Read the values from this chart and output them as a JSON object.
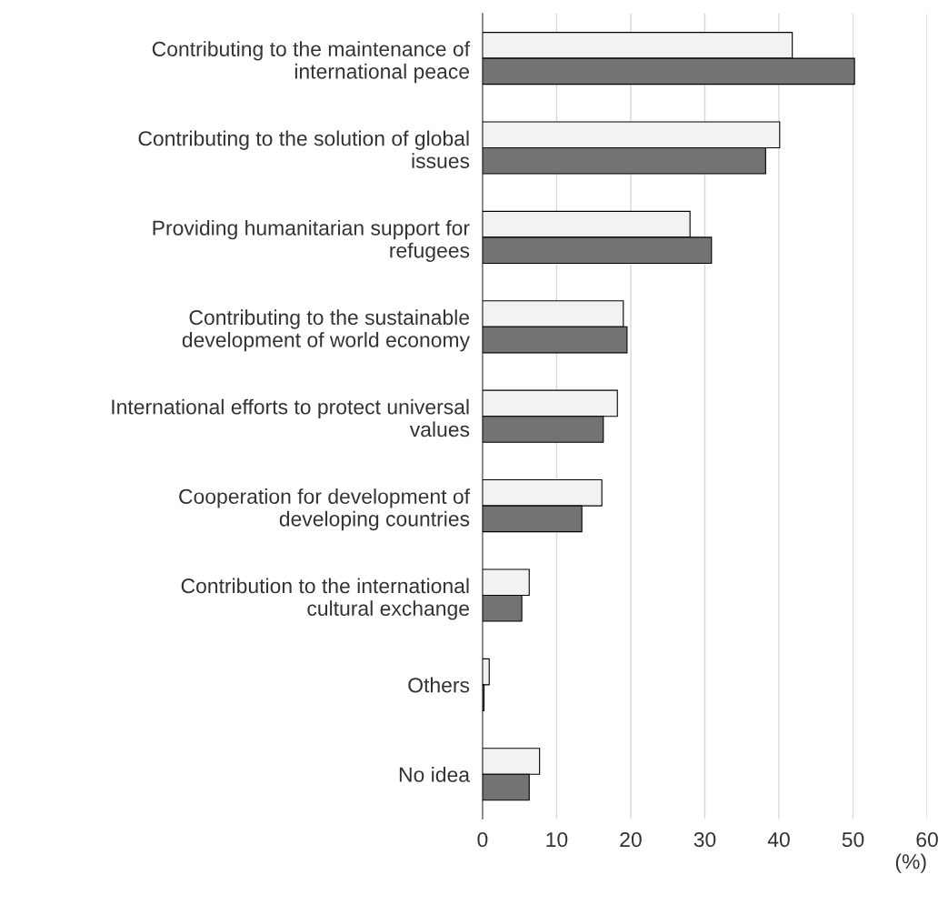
{
  "chart_data": {
    "type": "bar",
    "orientation": "horizontal",
    "xlabel": "(%)",
    "categories": [
      "Contributing to the maintenance of\ninternational peace",
      "Contributing to the solution of global\nissues",
      "Providing humanitarian support for\nrefugees",
      "Contributing to the sustainable\ndevelopment of world economy",
      "International efforts to protect universal\nvalues",
      "Cooperation for development of\ndeveloping countries",
      "Contribution to the international\ncultural exchange",
      "Others",
      "No idea"
    ],
    "series": [
      {
        "color": "#f2f2f2",
        "values": [
          41.8,
          40.1,
          28.0,
          19.0,
          18.2,
          16.1,
          6.3,
          0.9,
          7.7
        ]
      },
      {
        "color": "#737373",
        "values": [
          50.2,
          38.2,
          30.9,
          19.5,
          16.3,
          13.4,
          5.3,
          0.2,
          6.3
        ]
      }
    ],
    "xlim": [
      0,
      60
    ],
    "xticks": [
      0,
      10,
      20,
      30,
      40,
      50,
      60
    ],
    "grid": "x",
    "legend": false
  }
}
